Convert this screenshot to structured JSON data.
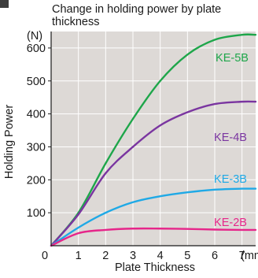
{
  "chart_data": {
    "type": "line",
    "title": "Change in holding power by plate thickness",
    "xlabel": "Plate Thickness",
    "ylabel": "Holding Power",
    "x_unit": "(mm)",
    "y_unit": "(N)",
    "xlim": [
      0,
      7.5
    ],
    "ylim": [
      0,
      650
    ],
    "x_ticks": [
      "0",
      "1",
      "2",
      "3",
      "4",
      "5",
      "6",
      "7"
    ],
    "y_ticks": [
      "100",
      "200",
      "300",
      "400",
      "500",
      "600"
    ],
    "grid": true,
    "background": "#ddd9d6",
    "series": [
      {
        "name": "KE-5B",
        "color": "#1ea64a",
        "points": [
          [
            0,
            0
          ],
          [
            1,
            100
          ],
          [
            2,
            250
          ],
          [
            3,
            385
          ],
          [
            4,
            500
          ],
          [
            5,
            580
          ],
          [
            6,
            625
          ],
          [
            7,
            640
          ],
          [
            7.5,
            640
          ]
        ]
      },
      {
        "name": "KE-4B",
        "color": "#7a35a0",
        "points": [
          [
            0,
            0
          ],
          [
            1,
            95
          ],
          [
            2,
            220
          ],
          [
            3,
            300
          ],
          [
            4,
            365
          ],
          [
            5,
            405
          ],
          [
            6,
            430
          ],
          [
            7,
            437
          ],
          [
            7.5,
            437
          ]
        ]
      },
      {
        "name": "KE-3B",
        "color": "#1fa9e6",
        "points": [
          [
            0,
            0
          ],
          [
            1,
            55
          ],
          [
            2,
            100
          ],
          [
            3,
            132
          ],
          [
            4,
            150
          ],
          [
            5,
            162
          ],
          [
            6,
            170
          ],
          [
            7,
            173
          ],
          [
            7.5,
            173
          ]
        ]
      },
      {
        "name": "KE-2B",
        "color": "#e6268a",
        "points": [
          [
            0,
            0
          ],
          [
            1,
            38
          ],
          [
            2,
            48
          ],
          [
            3,
            52
          ],
          [
            4,
            52
          ],
          [
            5,
            51
          ],
          [
            6,
            49
          ],
          [
            7,
            48
          ],
          [
            7.5,
            48
          ]
        ]
      }
    ]
  }
}
